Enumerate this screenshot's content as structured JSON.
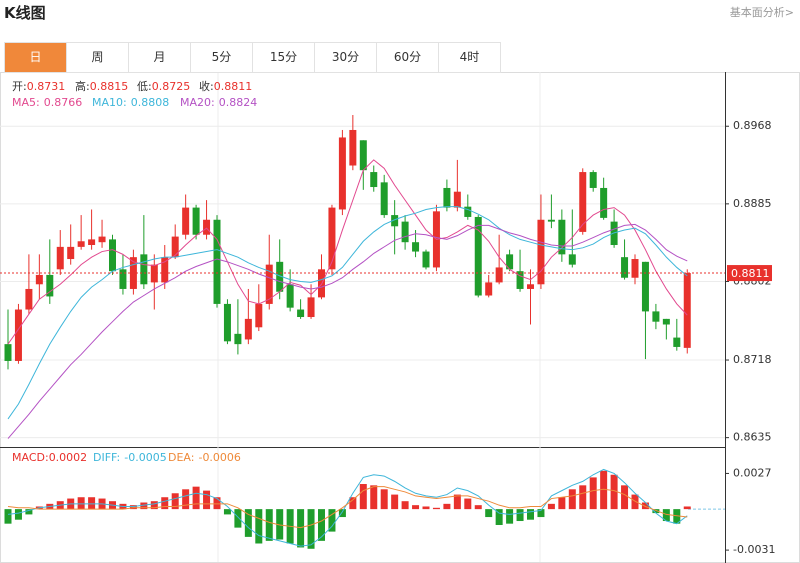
{
  "header": {
    "title": "K线图",
    "link": "基本面分析>",
    "tabs": [
      {
        "label": "日",
        "active": true
      },
      {
        "label": "周",
        "active": false
      },
      {
        "label": "月",
        "active": false
      },
      {
        "label": "5分",
        "active": false
      },
      {
        "label": "15分",
        "active": false
      },
      {
        "label": "30分",
        "active": false
      },
      {
        "label": "60分",
        "active": false
      },
      {
        "label": "4时",
        "active": false
      }
    ]
  },
  "chart_data": [
    {
      "type": "candlestick",
      "up_color": "#e8312c",
      "down_color": "#1f9d2b",
      "stat_labels": [
        "开:",
        "高:",
        "低:",
        "收:"
      ],
      "open": [
        0.8735,
        0.8717,
        0.8772,
        0.8799,
        0.8809,
        0.8815,
        0.8826,
        0.8839,
        0.8841,
        0.8844,
        0.8847,
        0.8815,
        0.8794,
        0.8831,
        0.8801,
        0.8801,
        0.8828,
        0.8852,
        0.8881,
        0.8852,
        0.8868,
        0.8778,
        0.8746,
        0.874,
        0.8753,
        0.8778,
        0.8823,
        0.8799,
        0.8772,
        0.8764,
        0.8785,
        0.8815,
        0.8879,
        0.8926,
        0.8953,
        0.8919,
        0.8908,
        0.8873,
        0.8866,
        0.8844,
        0.8834,
        0.8817,
        0.8902,
        0.8881,
        0.8882,
        0.8871,
        0.8787,
        0.8801,
        0.8831,
        0.8813,
        0.8794,
        0.8799,
        0.8868,
        0.8868,
        0.8831,
        0.8855,
        0.8919,
        0.8902,
        0.8866,
        0.8828,
        0.8806,
        0.8823,
        0.877,
        0.8762,
        0.8742,
        0.8731
      ],
      "high": [
        0.8772,
        0.8778,
        0.8831,
        0.8831,
        0.8847,
        0.8857,
        0.8863,
        0.8873,
        0.8879,
        0.8868,
        0.8852,
        0.8831,
        0.8836,
        0.8873,
        0.8831,
        0.8841,
        0.8863,
        0.8895,
        0.8884,
        0.8889,
        0.8873,
        0.8783,
        0.8783,
        0.8794,
        0.8799,
        0.8852,
        0.8847,
        0.8815,
        0.8783,
        0.8799,
        0.8831,
        0.8884,
        0.8964,
        0.898,
        0.8953,
        0.8926,
        0.8916,
        0.8889,
        0.8873,
        0.8857,
        0.8836,
        0.8884,
        0.8911,
        0.8932,
        0.8895,
        0.8873,
        0.8809,
        0.8852,
        0.8836,
        0.8836,
        0.8815,
        0.8895,
        0.8895,
        0.8879,
        0.8879,
        0.8923,
        0.8921,
        0.8913,
        0.8879,
        0.8847,
        0.8831,
        0.8823,
        0.8778,
        0.8762,
        0.8762,
        0.8815
      ],
      "low": [
        0.8708,
        0.8714,
        0.8767,
        0.8783,
        0.8778,
        0.8809,
        0.882,
        0.8836,
        0.8836,
        0.8838,
        0.8809,
        0.8788,
        0.8788,
        0.8794,
        0.8772,
        0.8794,
        0.8826,
        0.8847,
        0.8847,
        0.8847,
        0.8774,
        0.8735,
        0.8724,
        0.8735,
        0.8749,
        0.8772,
        0.8783,
        0.877,
        0.8762,
        0.8762,
        0.8783,
        0.8809,
        0.8873,
        0.8921,
        0.89,
        0.8898,
        0.887,
        0.8831,
        0.8836,
        0.8828,
        0.8815,
        0.8813,
        0.8877,
        0.8877,
        0.8868,
        0.8785,
        0.8785,
        0.8799,
        0.8813,
        0.8791,
        0.8756,
        0.8794,
        0.8859,
        0.8823,
        0.8817,
        0.8852,
        0.8898,
        0.8868,
        0.8838,
        0.8804,
        0.8799,
        0.8719,
        0.8751,
        0.874,
        0.8728,
        0.8725
      ],
      "close": [
        0.8717,
        0.8772,
        0.8794,
        0.8809,
        0.8786,
        0.8839,
        0.8839,
        0.8845,
        0.8847,
        0.885,
        0.8813,
        0.8794,
        0.8828,
        0.8799,
        0.882,
        0.8828,
        0.885,
        0.8881,
        0.8852,
        0.8868,
        0.8778,
        0.8738,
        0.8735,
        0.8762,
        0.8778,
        0.882,
        0.8791,
        0.8774,
        0.8764,
        0.8785,
        0.8815,
        0.8881,
        0.8956,
        0.8964,
        0.8921,
        0.8903,
        0.8873,
        0.8861,
        0.8844,
        0.8834,
        0.8817,
        0.8877,
        0.8881,
        0.8898,
        0.8871,
        0.8787,
        0.8801,
        0.8817,
        0.8815,
        0.8794,
        0.8799,
        0.8868,
        0.8866,
        0.8831,
        0.882,
        0.8919,
        0.8902,
        0.887,
        0.8841,
        0.8806,
        0.8826,
        0.877,
        0.8759,
        0.8756,
        0.8732,
        0.8811
      ],
      "series": [
        {
          "name": "MA5:",
          "color": "#e2498f",
          "values": [
            0.8735,
            0.8751,
            0.8767,
            0.8783,
            0.8791,
            0.8799,
            0.8809,
            0.882,
            0.8828,
            0.8834,
            0.8836,
            0.8831,
            0.8823,
            0.882,
            0.8819,
            0.8823,
            0.883,
            0.8841,
            0.8851,
            0.8859,
            0.8847,
            0.8823,
            0.8799,
            0.8781,
            0.8778,
            0.8783,
            0.8791,
            0.8801,
            0.8798,
            0.8788,
            0.8799,
            0.8823,
            0.8857,
            0.8889,
            0.8921,
            0.8932,
            0.8923,
            0.8905,
            0.8889,
            0.8873,
            0.8857,
            0.8847,
            0.8849,
            0.8855,
            0.8862,
            0.8857,
            0.8845,
            0.8828,
            0.8815,
            0.8808,
            0.8804,
            0.8813,
            0.8828,
            0.8838,
            0.8849,
            0.8863,
            0.8873,
            0.8879,
            0.8881,
            0.8873,
            0.8857,
            0.8836,
            0.8813,
            0.8794,
            0.8778,
            0.8766
          ]
        },
        {
          "name": "MA10:",
          "color": "#3eb6da",
          "values": [
            0.8655,
            0.8671,
            0.8692,
            0.8714,
            0.8735,
            0.8753,
            0.877,
            0.8785,
            0.8796,
            0.8804,
            0.8813,
            0.8817,
            0.882,
            0.8823,
            0.8826,
            0.8828,
            0.8828,
            0.883,
            0.8832,
            0.8834,
            0.8836,
            0.8832,
            0.8828,
            0.8822,
            0.8817,
            0.8813,
            0.8808,
            0.8804,
            0.8802,
            0.8801,
            0.8804,
            0.8808,
            0.8817,
            0.8831,
            0.8845,
            0.8855,
            0.8863,
            0.8868,
            0.8872,
            0.8875,
            0.8879,
            0.8881,
            0.8882,
            0.8882,
            0.8879,
            0.8874,
            0.8868,
            0.8859,
            0.8852,
            0.8847,
            0.8844,
            0.8841,
            0.8839,
            0.8837,
            0.8836,
            0.8838,
            0.8842,
            0.8849,
            0.8854,
            0.8857,
            0.8859,
            0.8853,
            0.8841,
            0.8828,
            0.8817,
            0.8808
          ]
        },
        {
          "name": "MA20:",
          "color": "#b452c4",
          "values": [
            0.8634,
            0.8647,
            0.866,
            0.8674,
            0.8687,
            0.87,
            0.8713,
            0.8724,
            0.8736,
            0.8748,
            0.8759,
            0.877,
            0.878,
            0.8787,
            0.8794,
            0.88,
            0.8806,
            0.8813,
            0.8818,
            0.8822,
            0.8826,
            0.8823,
            0.8819,
            0.8815,
            0.881,
            0.8806,
            0.8802,
            0.8799,
            0.8796,
            0.8794,
            0.8796,
            0.88,
            0.8806,
            0.8815,
            0.8823,
            0.8832,
            0.8839,
            0.8846,
            0.885,
            0.8853,
            0.8852,
            0.8849,
            0.8847,
            0.8851,
            0.8857,
            0.8862,
            0.8862,
            0.8858,
            0.8854,
            0.8851,
            0.8847,
            0.8844,
            0.8841,
            0.884,
            0.884,
            0.8844,
            0.8849,
            0.8854,
            0.8858,
            0.8862,
            0.8863,
            0.8857,
            0.8847,
            0.8836,
            0.8829,
            0.8824
          ]
        }
      ],
      "ylim": [
        0.8625,
        0.9026
      ],
      "yticks": [
        0.8635,
        0.8718,
        0.8802,
        0.8885,
        0.8968
      ],
      "grid": true
    },
    {
      "type": "macd",
      "up_color": "#e8312c",
      "down_color": "#1f9d2b",
      "series": [
        {
          "name": "MACD:",
          "color": "#e8312c",
          "values": [
            -0.0011,
            -0.0008,
            -0.0004,
            0.0002,
            0.0004,
            0.0006,
            0.0008,
            0.0009,
            0.0009,
            0.0008,
            0.0006,
            0.0004,
            0.0003,
            0.0005,
            0.0006,
            0.0009,
            0.0012,
            0.0015,
            0.0017,
            0.0014,
            0.0009,
            -0.0004,
            -0.0014,
            -0.0021,
            -0.0026,
            -0.0024,
            -0.0023,
            -0.0026,
            -0.0029,
            -0.003,
            -0.0024,
            -0.0017,
            -0.0006,
            0.0009,
            0.0019,
            0.0018,
            0.0015,
            0.0011,
            0.0006,
            0.0003,
            0.0002,
            0.0001,
            0.0004,
            0.0011,
            0.0008,
            0.0003,
            -0.0006,
            -0.0012,
            -0.0011,
            -0.0009,
            -0.0008,
            -0.0006,
            0.0004,
            0.0009,
            0.0015,
            0.0018,
            0.0024,
            0.0029,
            0.0026,
            0.0018,
            0.0011,
            0.0005,
            -0.0003,
            -0.0009,
            -0.0011,
            0.0002
          ]
        },
        {
          "name": "DIFF:",
          "color": "#3eb6da",
          "values": [
            -0.0004,
            -0.0003,
            -0.0001,
            0.0001,
            0.0002,
            0.0003,
            0.0004,
            0.0004,
            0.0004,
            0.0004,
            0.0003,
            0.0002,
            0.0002,
            0.0003,
            0.0004,
            0.0006,
            0.0008,
            0.001,
            0.0012,
            0.0011,
            0.0008,
            0.0002,
            -0.0006,
            -0.0014,
            -0.002,
            -0.0022,
            -0.0024,
            -0.0026,
            -0.0028,
            -0.0027,
            -0.0021,
            -0.0013,
            -0.0002,
            0.0012,
            0.0024,
            0.0026,
            0.0025,
            0.0021,
            0.0016,
            0.0012,
            0.001,
            0.0009,
            0.0011,
            0.0016,
            0.0014,
            0.001,
            0.0003,
            -0.0003,
            -0.0004,
            -0.0003,
            -0.0002,
            -0.0001,
            0.001,
            0.0014,
            0.0018,
            0.0021,
            0.0026,
            0.003,
            0.0027,
            0.002,
            0.0012,
            0.0005,
            -0.0003,
            -0.0009,
            -0.0011,
            -0.0005
          ]
        },
        {
          "name": "DEA:",
          "color": "#ee8a3a",
          "values": [
            0.0002,
            0.0001,
            0.0001,
            0.0,
            0.0,
            0.0,
            0.0,
            0.0,
            0.0,
            0.0,
            0.0,
            0.0,
            0.0001,
            0.0001,
            0.0001,
            0.0002,
            0.0002,
            0.0003,
            0.0004,
            0.0004,
            0.0004,
            0.0004,
            0.0001,
            -0.0004,
            -0.0007,
            -0.001,
            -0.0012,
            -0.0013,
            -0.0014,
            -0.0012,
            -0.0009,
            -0.0004,
            0.0001,
            0.0007,
            0.0014,
            0.0017,
            0.0017,
            0.0015,
            0.0013,
            0.001,
            0.0009,
            0.0008,
            0.0009,
            0.001,
            0.001,
            0.0008,
            0.0006,
            0.0003,
            0.0001,
            0.0001,
            0.0002,
            0.0002,
            0.0008,
            0.0009,
            0.001,
            0.0012,
            0.0014,
            0.0015,
            0.0014,
            0.0011,
            0.0006,
            0.0002,
            -0.0001,
            -0.0004,
            -0.0005,
            -0.0006
          ]
        }
      ],
      "ylim": [
        -0.004,
        0.0047
      ],
      "yticks": [
        -0.0031,
        0.0027
      ]
    }
  ]
}
